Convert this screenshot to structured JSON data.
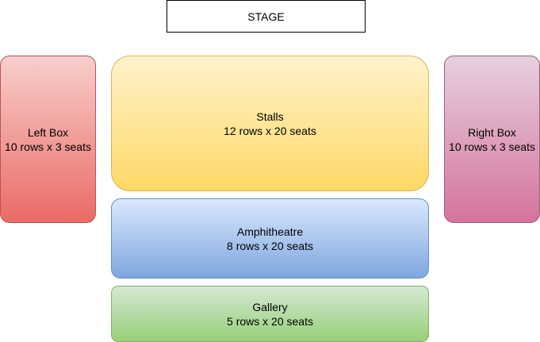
{
  "stage": {
    "label": "STAGE"
  },
  "left_box": {
    "name": "Left Box",
    "capacity": "10 rows x 3 seats"
  },
  "right_box": {
    "name": "Right Box",
    "capacity": "10 rows x 3 seats"
  },
  "stalls": {
    "name": "Stalls",
    "capacity": "12 rows x 20 seats"
  },
  "amphitheatre": {
    "name": "Amphitheatre",
    "capacity": "8 rows x 20 seats"
  },
  "gallery": {
    "name": "Gallery",
    "capacity": "5 rows x 20 seats"
  },
  "colors": {
    "left_box": [
      "#f8cecc",
      "#ea6b66"
    ],
    "right_box": [
      "#e6d0de",
      "#d5739d"
    ],
    "stalls": [
      "#fff2cc",
      "#ffd966"
    ],
    "amphitheatre": [
      "#dae8fc",
      "#7ea6e0"
    ],
    "gallery": [
      "#d5e8d4",
      "#97d077"
    ]
  }
}
